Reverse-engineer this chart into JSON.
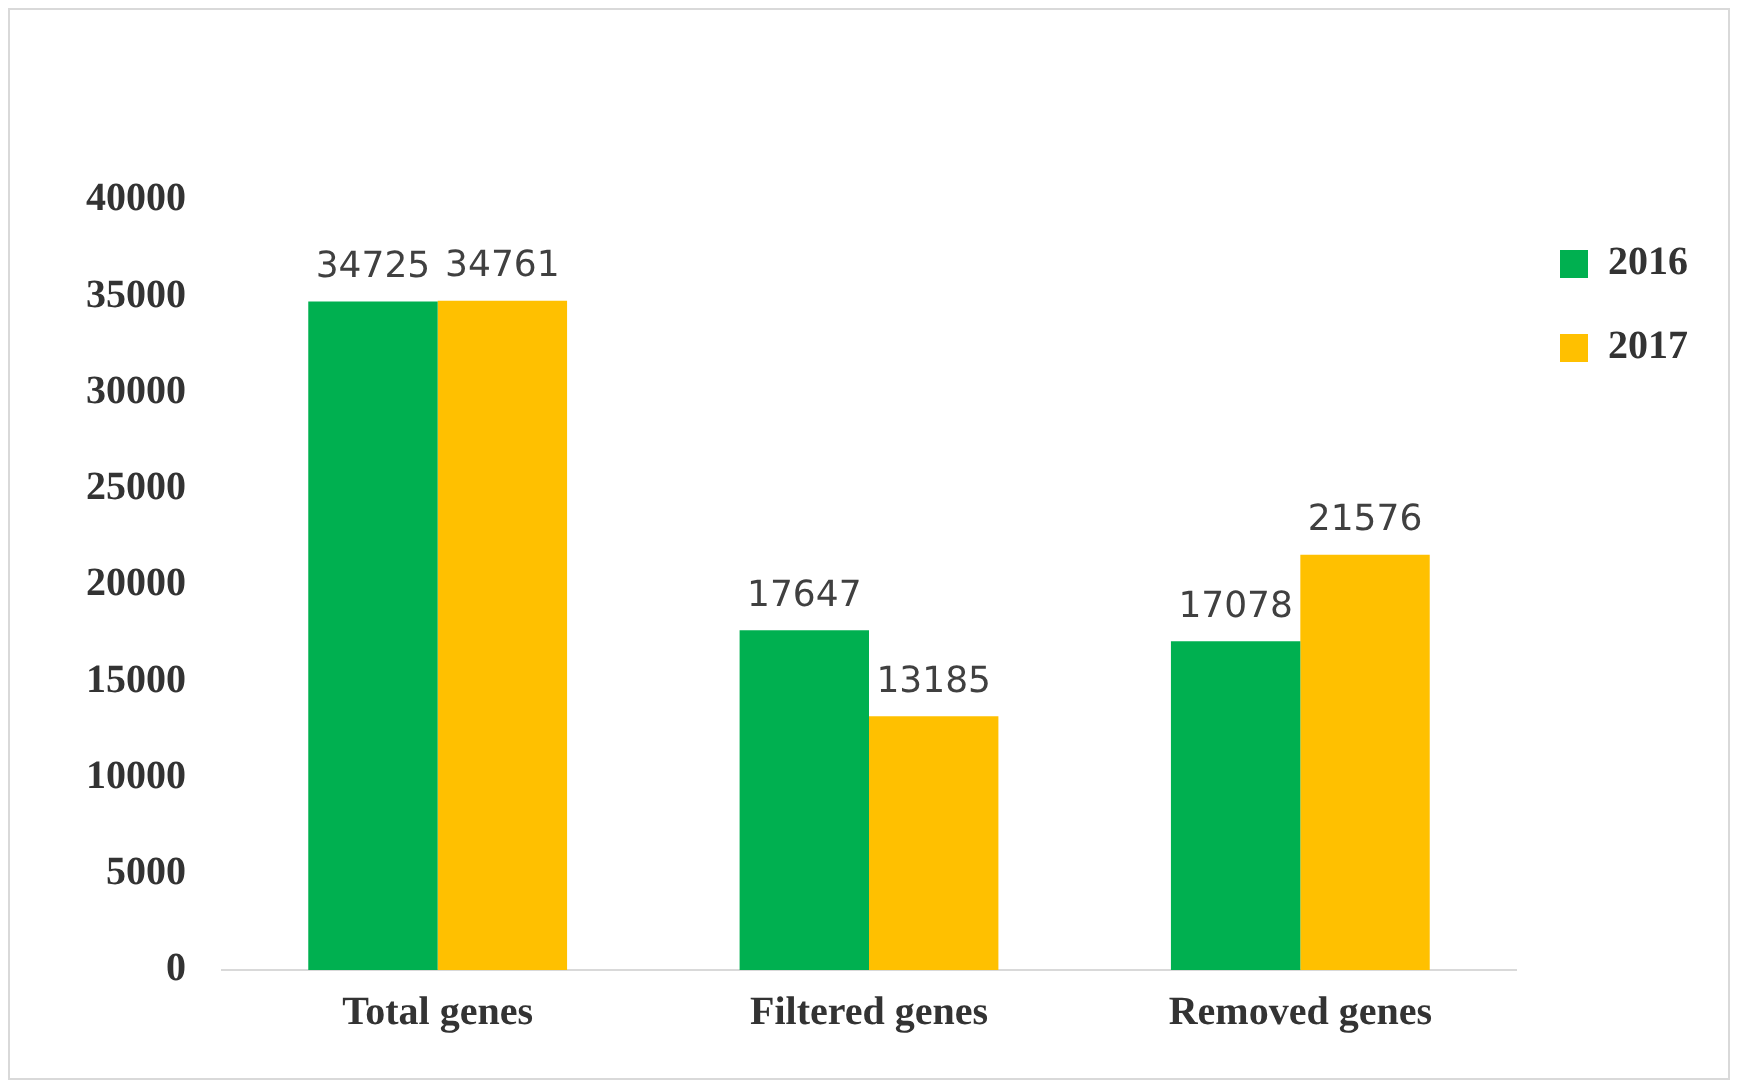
{
  "chart_data": {
    "type": "bar",
    "categories": [
      "Total genes",
      "Filtered genes",
      "Removed genes"
    ],
    "series": [
      {
        "name": "2016",
        "color": "#00b050",
        "values": [
          34725,
          17647,
          17078
        ]
      },
      {
        "name": "2017",
        "color": "#ffc000",
        "values": [
          34761,
          13185,
          21576
        ]
      }
    ],
    "ylim": [
      0,
      40000
    ],
    "yticks": [
      0,
      5000,
      10000,
      15000,
      20000,
      25000,
      30000,
      35000,
      40000
    ],
    "grid": false,
    "legend": "top right",
    "data_labels": true
  }
}
